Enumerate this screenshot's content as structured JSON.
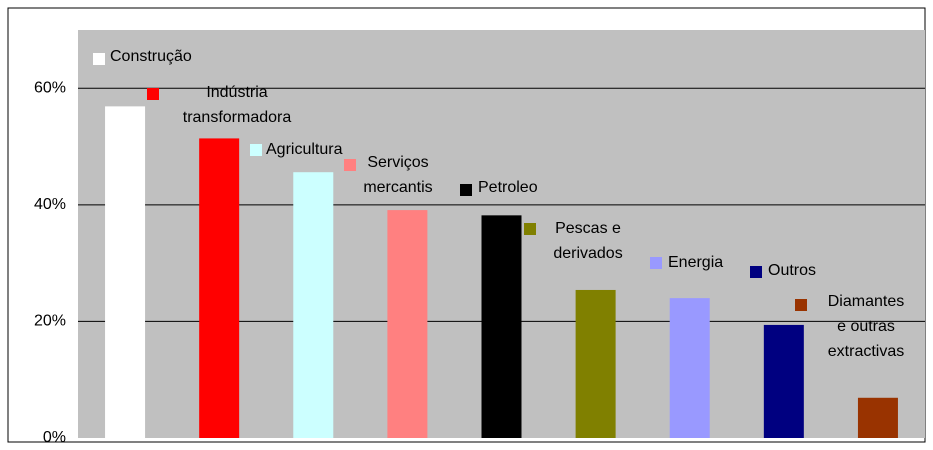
{
  "chart_data": {
    "type": "bar",
    "categories": [
      "Construção",
      "Indústria\ntransformadora",
      "Agricultura",
      "Serviços\nmercantis",
      "Petroleo",
      "Pescas e\nderivados",
      "Energia",
      "Outros",
      "Diamantes\ne outras\nextractivas"
    ],
    "values": [
      56.9,
      51.4,
      45.6,
      39.1,
      38.2,
      25.4,
      24,
      19.4,
      6.9
    ],
    "colors": [
      "#ffffff",
      "#ff0000",
      "#ccffff",
      "#ff8080",
      "#000000",
      "#808000",
      "#9999ff",
      "#000080",
      "#993300"
    ],
    "ylim": [
      0,
      70
    ],
    "yticks": [
      {
        "value": 0,
        "label": "0%"
      },
      {
        "value": 20,
        "label": "20%"
      },
      {
        "value": 40,
        "label": "40%"
      },
      {
        "value": 60,
        "label": "60%"
      }
    ],
    "grid": true
  }
}
